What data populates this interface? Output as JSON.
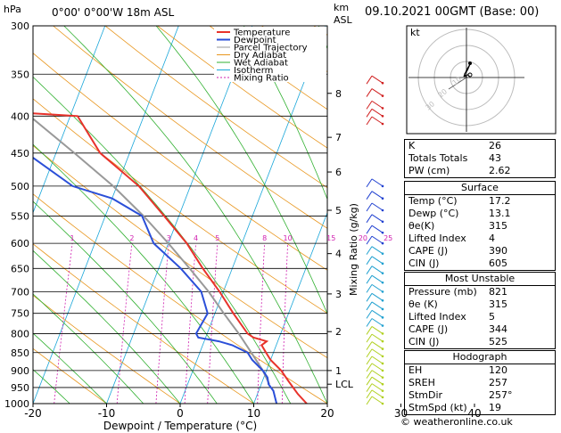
{
  "header": {
    "left_unit": "hPa",
    "location": "0°00' 0°00'W 18m ASL",
    "right_unit_km": "km",
    "right_unit_asl": "ASL",
    "date": "09.10.2021 00GMT (Base: 00)"
  },
  "legend": [
    {
      "label": "Temperature",
      "color": "#e8322b"
    },
    {
      "label": "Dewpoint",
      "color": "#2b4fd8"
    },
    {
      "label": "Parcel Trajectory",
      "color": "#999999"
    },
    {
      "label": "Dry Adiabat",
      "color": "#e8961e"
    },
    {
      "label": "Wet Adiabat",
      "color": "#30b030"
    },
    {
      "label": "Isotherm",
      "color": "#19a6d9"
    },
    {
      "label": "Mixing Ratio",
      "color": "#d020b0"
    }
  ],
  "chart_data": {
    "type": "line",
    "title": "",
    "xlabel": "Dewpoint / Temperature (°C)",
    "ylabel": "hPa",
    "xlim": [
      -35,
      40
    ],
    "ylim": [
      1000,
      300
    ],
    "x_ticks": [
      "-30",
      "-20",
      "-10",
      "0",
      "10",
      "20",
      "30",
      "40"
    ],
    "pressure_ticks": [
      "300",
      "350",
      "400",
      "450",
      "500",
      "550",
      "600",
      "650",
      "700",
      "750",
      "800",
      "850",
      "900",
      "950",
      "1000"
    ],
    "km_ticks": [
      {
        "p": 372,
        "label": "8"
      },
      {
        "p": 428,
        "label": "7"
      },
      {
        "p": 478,
        "label": "6"
      },
      {
        "p": 540,
        "label": "5"
      },
      {
        "p": 620,
        "label": "4"
      },
      {
        "p": 705,
        "label": "3"
      },
      {
        "p": 795,
        "label": "2"
      },
      {
        "p": 900,
        "label": "1"
      },
      {
        "p": 940,
        "label": "LCL"
      }
    ],
    "mixing_ratio_label": "Mixing Ratio (g/kg)",
    "mixing_ratio_values": [
      "1",
      "2",
      "3",
      "4",
      "5",
      "8",
      "10",
      "15",
      "20",
      "25"
    ],
    "temperature": [
      [
        1000,
        17.2
      ],
      [
        970,
        15.5
      ],
      [
        950,
        14.5
      ],
      [
        930,
        13.5
      ],
      [
        900,
        12
      ],
      [
        870,
        10
      ],
      [
        850,
        9
      ],
      [
        830,
        8
      ],
      [
        820,
        8.5
      ],
      [
        810,
        6.5
      ],
      [
        800,
        5.5
      ],
      [
        750,
        2.5
      ],
      [
        700,
        -0.5
      ],
      [
        650,
        -4
      ],
      [
        600,
        -7.5
      ],
      [
        550,
        -12
      ],
      [
        500,
        -17
      ],
      [
        450,
        -24
      ],
      [
        400,
        -29
      ],
      [
        396,
        -36
      ],
      [
        392,
        -52
      ],
      [
        375,
        -63
      ],
      [
        368,
        -53
      ],
      [
        362,
        -72
      ],
      [
        350,
        -44
      ],
      [
        300,
        -52
      ]
    ],
    "dewpoint": [
      [
        1000,
        13.1
      ],
      [
        960,
        12
      ],
      [
        940,
        11
      ],
      [
        920,
        10.5
      ],
      [
        900,
        9.5
      ],
      [
        870,
        7.5
      ],
      [
        850,
        6.5
      ],
      [
        830,
        4
      ],
      [
        820,
        2
      ],
      [
        810,
        -1
      ],
      [
        800,
        -1.5
      ],
      [
        750,
        -1
      ],
      [
        700,
        -3
      ],
      [
        650,
        -7
      ],
      [
        600,
        -12
      ],
      [
        550,
        -15
      ],
      [
        520,
        -20
      ],
      [
        500,
        -26
      ],
      [
        450,
        -34
      ],
      [
        400,
        -40
      ],
      [
        396,
        -60
      ],
      [
        392,
        -75
      ],
      [
        375,
        -70
      ],
      [
        368,
        -62
      ],
      [
        362,
        -78
      ],
      [
        350,
        -75
      ]
    ],
    "parcel": [
      [
        940,
        11.1
      ],
      [
        900,
        9.5
      ],
      [
        850,
        7
      ],
      [
        800,
        4.3
      ],
      [
        750,
        1.2
      ],
      [
        700,
        -2
      ],
      [
        650,
        -5.8
      ],
      [
        600,
        -10
      ],
      [
        550,
        -14.8
      ],
      [
        500,
        -20.5
      ],
      [
        450,
        -27.5
      ],
      [
        400,
        -35.5
      ],
      [
        350,
        -45
      ],
      [
        300,
        -56
      ]
    ]
  },
  "hodograph": {
    "label": "kt",
    "rings": [
      "10",
      "20",
      "30"
    ]
  },
  "indices": [
    {
      "label": "K",
      "value": "26"
    },
    {
      "label": "Totals Totals",
      "value": "43"
    },
    {
      "label": "PW (cm)",
      "value": "2.62"
    }
  ],
  "surface": {
    "title": "Surface",
    "rows": [
      {
        "label": "Temp (°C)",
        "value": "17.2"
      },
      {
        "label": "Dewp (°C)",
        "value": "13.1"
      },
      {
        "label": "θe(K)",
        "value": "315"
      },
      {
        "label": "Lifted Index",
        "value": "4"
      },
      {
        "label": "CAPE (J)",
        "value": "390"
      },
      {
        "label": "CIN (J)",
        "value": "605"
      }
    ]
  },
  "most_unstable": {
    "title": "Most Unstable",
    "rows": [
      {
        "label": "Pressure (mb)",
        "value": "821"
      },
      {
        "label": "θe (K)",
        "value": "315"
      },
      {
        "label": "Lifted Index",
        "value": "5"
      },
      {
        "label": "CAPE (J)",
        "value": "344"
      },
      {
        "label": "CIN (J)",
        "value": "525"
      }
    ]
  },
  "hodograph_table": {
    "title": "Hodograph",
    "rows": [
      {
        "label": "EH",
        "value": "120"
      },
      {
        "label": "SREH",
        "value": "257"
      },
      {
        "label": "StmDir",
        "value": "257°"
      },
      {
        "label": "StmSpd (kt)",
        "value": "19"
      }
    ]
  },
  "footer": "© weatheronline.co.uk"
}
